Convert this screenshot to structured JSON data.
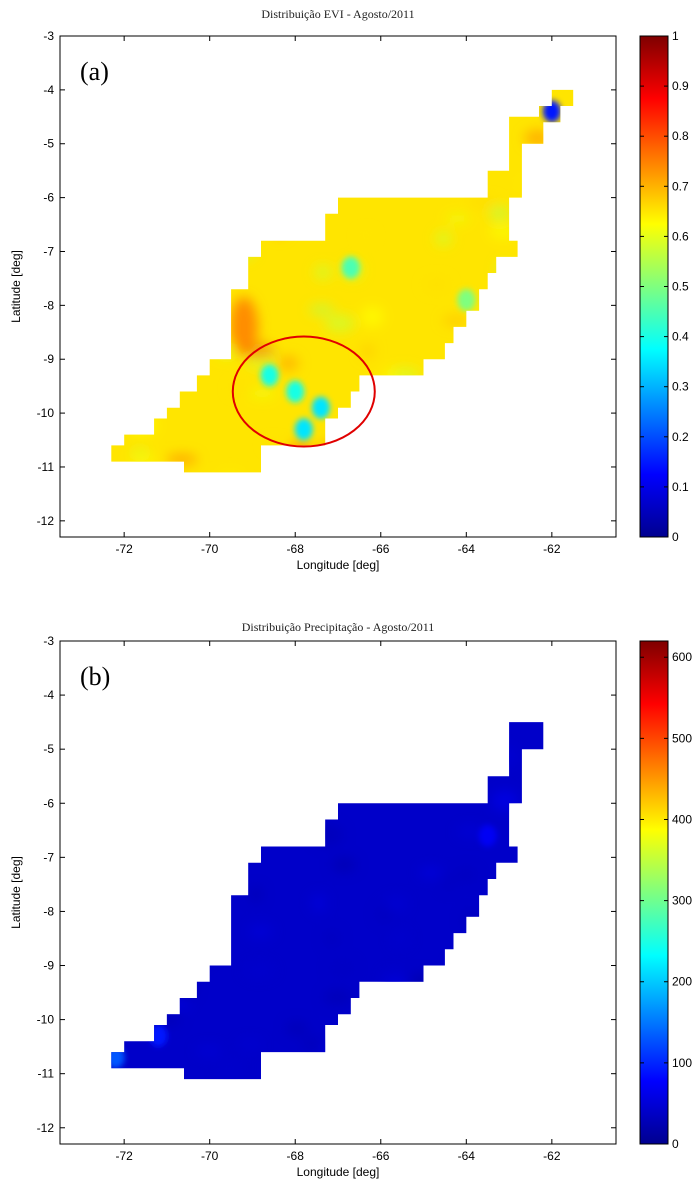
{
  "chart_data": [
    {
      "type": "heatmap",
      "panel_label": "(a)",
      "title": "Distribuição EVI - Agosto/2011",
      "xlabel": "Longitude [deg]",
      "ylabel": "Latitude [deg]",
      "xlim": [
        -73.5,
        -60.5
      ],
      "ylim": [
        -12.3,
        -3
      ],
      "xticks": [
        -72,
        -70,
        -68,
        -66,
        -64,
        -62
      ],
      "yticks": [
        -3,
        -4,
        -5,
        -6,
        -7,
        -8,
        -9,
        -10,
        -11,
        -12
      ],
      "colorbar": {
        "min": 0,
        "max": 1,
        "ticks": [
          0,
          0.1,
          0.2,
          0.3,
          0.4,
          0.5,
          0.6,
          0.7,
          0.8,
          0.9,
          1
        ],
        "colormap": "jet"
      },
      "region_mask": "same Amazon region outline as panel (b), plus extra cells at lon -62.0 to -61.5, lat -4.0 to -4.3",
      "typical_value": 0.65,
      "range_observed": [
        0.15,
        0.8
      ],
      "low_spots": [
        {
          "lon": -68.6,
          "lat": -9.3,
          "value": 0.4
        },
        {
          "lon": -68.0,
          "lat": -9.6,
          "value": 0.4
        },
        {
          "lon": -67.4,
          "lat": -9.9,
          "value": 0.35
        },
        {
          "lon": -67.8,
          "lat": -10.3,
          "value": 0.35
        },
        {
          "lon": -66.7,
          "lat": -7.3,
          "value": 0.45
        },
        {
          "lon": -64.0,
          "lat": -7.9,
          "value": 0.5
        },
        {
          "lon": -62.0,
          "lat": -4.4,
          "value": 0.15
        }
      ],
      "annotation": {
        "shape": "ellipse",
        "color": "#e00000",
        "center_lon": -67.8,
        "center_lat": -9.6
      }
    },
    {
      "type": "heatmap",
      "panel_label": "(b)",
      "title": "Distribuição Precipitação - Agosto/2011",
      "xlabel": "Longitude [deg]",
      "ylabel": "Latitude [deg]",
      "xlim": [
        -73.5,
        -60.5
      ],
      "ylim": [
        -12.3,
        -3
      ],
      "xticks": [
        -72,
        -70,
        -68,
        -66,
        -64,
        -62
      ],
      "yticks": [
        -3,
        -4,
        -5,
        -6,
        -7,
        -8,
        -9,
        -10,
        -11,
        -12
      ],
      "colorbar": {
        "min": 0,
        "max": 620,
        "ticks": [
          0,
          100,
          200,
          300,
          400,
          500,
          600
        ],
        "colormap": "jet"
      },
      "typical_value": 40,
      "range_observed": [
        20,
        130
      ],
      "high_spots": [
        {
          "lon": -72.2,
          "lat": -10.7,
          "value": 130
        },
        {
          "lon": -71.2,
          "lat": -10.3,
          "value": 90
        },
        {
          "lon": -63.5,
          "lat": -6.6,
          "value": 70
        }
      ],
      "region_mask": [
        {
          "lat": [
            -4.5,
            -5.0
          ],
          "lon": [
            [
              -63.0,
              -62.2
            ]
          ]
        },
        {
          "lat": [
            -5.0,
            -5.5
          ],
          "lon": [
            [
              -63.0,
              -62.7
            ]
          ]
        },
        {
          "lat": [
            -5.5,
            -6.0
          ],
          "lon": [
            [
              -63.5,
              -62.7
            ]
          ]
        },
        {
          "lat": [
            -6.0,
            -6.3
          ],
          "lon": [
            [
              -67.0,
              -63.0
            ]
          ]
        },
        {
          "lat": [
            -6.3,
            -6.8
          ],
          "lon": [
            [
              -67.3,
              -63.0
            ]
          ]
        },
        {
          "lat": [
            -6.8,
            -7.1
          ],
          "lon": [
            [
              -68.8,
              -62.8
            ]
          ]
        },
        {
          "lat": [
            -7.1,
            -7.4
          ],
          "lon": [
            [
              -69.1,
              -63.3
            ]
          ]
        },
        {
          "lat": [
            -7.4,
            -7.7
          ],
          "lon": [
            [
              -69.1,
              -63.5
            ]
          ]
        },
        {
          "lat": [
            -7.7,
            -8.1
          ],
          "lon": [
            [
              -69.5,
              -63.7
            ]
          ]
        },
        {
          "lat": [
            -8.1,
            -8.4
          ],
          "lon": [
            [
              -69.5,
              -64.0
            ]
          ]
        },
        {
          "lat": [
            -8.4,
            -8.7
          ],
          "lon": [
            [
              -69.5,
              -64.3
            ]
          ]
        },
        {
          "lat": [
            -8.7,
            -9.0
          ],
          "lon": [
            [
              -69.5,
              -64.5
            ]
          ]
        },
        {
          "lat": [
            -9.0,
            -9.3
          ],
          "lon": [
            [
              -70.0,
              -65.0
            ]
          ]
        },
        {
          "lat": [
            -9.3,
            -9.6
          ],
          "lon": [
            [
              -70.3,
              -66.5
            ]
          ]
        },
        {
          "lat": [
            -9.6,
            -9.9
          ],
          "lon": [
            [
              -70.7,
              -66.7
            ]
          ]
        },
        {
          "lat": [
            -9.9,
            -10.1
          ],
          "lon": [
            [
              -71.0,
              -67.0
            ]
          ]
        },
        {
          "lat": [
            -10.1,
            -10.4
          ],
          "lon": [
            [
              -71.3,
              -67.3
            ]
          ]
        },
        {
          "lat": [
            -10.4,
            -10.6
          ],
          "lon": [
            [
              -72.0,
              -67.3
            ]
          ]
        },
        {
          "lat": [
            -10.6,
            -10.9
          ],
          "lon": [
            [
              -72.3,
              -68.8
            ]
          ]
        },
        {
          "lat": [
            -10.9,
            -11.1
          ],
          "lon": [
            [
              -70.6,
              -68.8
            ]
          ]
        }
      ]
    }
  ]
}
